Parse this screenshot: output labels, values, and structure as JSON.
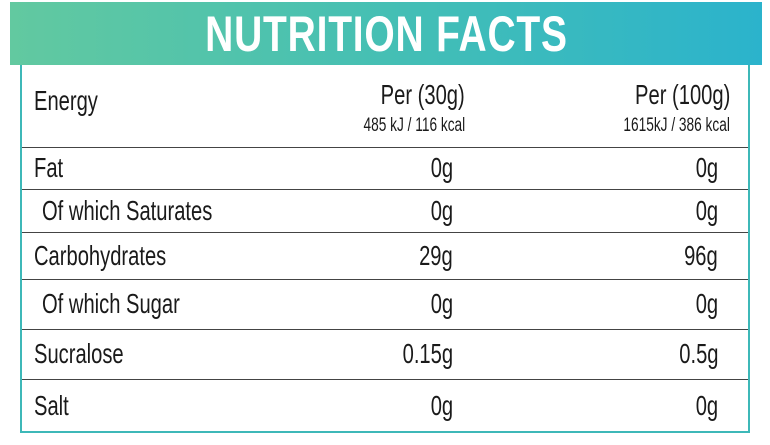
{
  "header": {
    "title": "NUTRITION FACTS"
  },
  "table": {
    "columns": [
      {
        "label": "Energy"
      },
      {
        "label": "Per (30g)",
        "sub": "485 kJ / 116 kcal"
      },
      {
        "label": "Per (100g)",
        "sub": "1615kJ / 386 kcal"
      }
    ],
    "rows": [
      [
        "Fat",
        "0g",
        "0g"
      ],
      [
        "Of which Saturates",
        "0g",
        "0g"
      ],
      [
        "Carbohydrates",
        "29g",
        "96g"
      ],
      [
        "Of which Sugar",
        "0g",
        "0g"
      ],
      [
        "Sucralose",
        "0.15g",
        "0.5g"
      ],
      [
        "Salt",
        "0g",
        "0g"
      ]
    ]
  }
}
